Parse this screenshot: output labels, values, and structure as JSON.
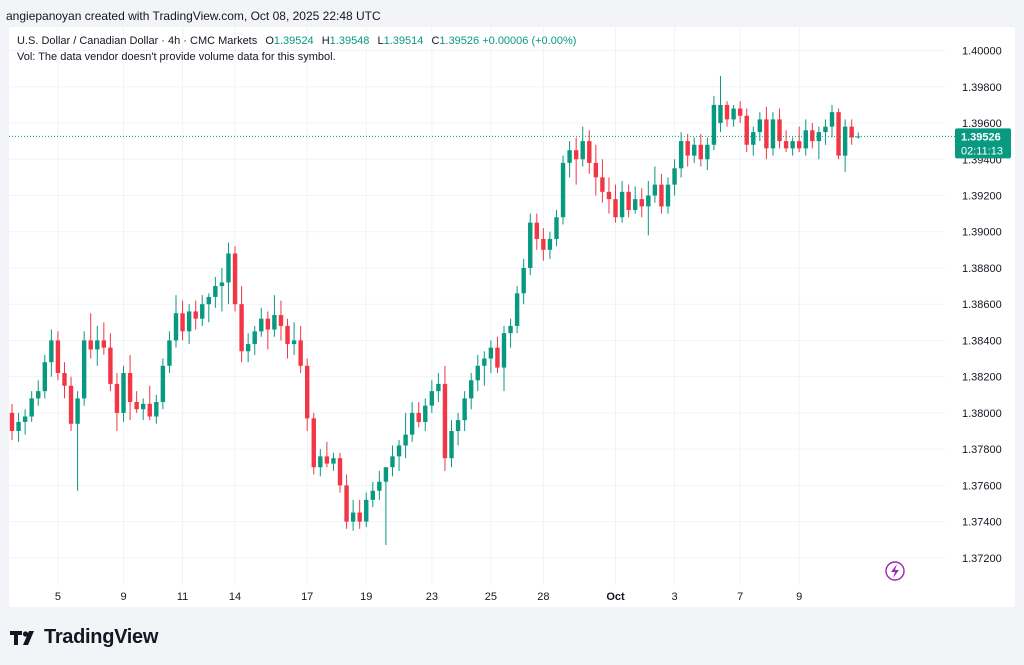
{
  "header": {
    "text": "angiepanoyan created with TradingView.com, Oct 08, 2025 22:48 UTC"
  },
  "legend": {
    "symbol": "U.S. Dollar / Canadian Dollar · 4h · CMC Markets",
    "o_label": "O",
    "o_value": "1.39524",
    "h_label": "H",
    "h_value": "1.39548",
    "l_label": "L",
    "l_value": "1.39514",
    "c_label": "C",
    "c_value": "1.39526",
    "change": "+0.00006 (+0.00%)",
    "volume_note": "Vol: The data vendor doesn't provide volume data for this symbol."
  },
  "price_label": {
    "price": "1.39526",
    "countdown": "02:11:13"
  },
  "footer": {
    "brand": "TradingView",
    "icon": "tradingview-logo-icon"
  },
  "icons": {
    "lightning": "lightning-icon"
  },
  "colors": {
    "up": "#089981",
    "down": "#f23645",
    "grid": "#f0f3fa",
    "accent": "#9c27b0"
  },
  "chart_data": {
    "type": "candlestick",
    "title": "U.S. Dollar / Canadian Dollar · 4h · CMC Markets",
    "xlabel": "",
    "ylabel": "",
    "ylim": [
      1.3705,
      1.4013
    ],
    "y_ticks": [
      "1.37200",
      "1.37400",
      "1.37600",
      "1.37800",
      "1.38000",
      "1.38200",
      "1.38400",
      "1.38600",
      "1.38800",
      "1.39000",
      "1.39200",
      "1.39400",
      "1.39600",
      "1.39800",
      "1.40000"
    ],
    "x_ticks": [
      {
        "label": "5",
        "i": 7
      },
      {
        "label": "9",
        "i": 17
      },
      {
        "label": "11",
        "i": 26
      },
      {
        "label": "14",
        "i": 34
      },
      {
        "label": "17",
        "i": 45
      },
      {
        "label": "19",
        "i": 54
      },
      {
        "label": "23",
        "i": 64
      },
      {
        "label": "25",
        "i": 73
      },
      {
        "label": "28",
        "i": 81
      },
      {
        "label": "Oct",
        "i": 92
      },
      {
        "label": "3",
        "i": 101
      },
      {
        "label": "7",
        "i": 111
      },
      {
        "label": "9",
        "i": 120
      }
    ],
    "last_price": 1.39526,
    "candles": [
      {
        "o": 1.38,
        "h": 1.3805,
        "l": 1.3785,
        "c": 1.379
      },
      {
        "o": 1.379,
        "h": 1.38,
        "l": 1.3784,
        "c": 1.3795
      },
      {
        "o": 1.3795,
        "h": 1.3802,
        "l": 1.3788,
        "c": 1.3798
      },
      {
        "o": 1.3798,
        "h": 1.3812,
        "l": 1.3795,
        "c": 1.3808
      },
      {
        "o": 1.3808,
        "h": 1.3818,
        "l": 1.3804,
        "c": 1.3812
      },
      {
        "o": 1.3812,
        "h": 1.3832,
        "l": 1.3808,
        "c": 1.3828
      },
      {
        "o": 1.3828,
        "h": 1.3846,
        "l": 1.382,
        "c": 1.384
      },
      {
        "o": 1.384,
        "h": 1.3845,
        "l": 1.3818,
        "c": 1.3822
      },
      {
        "o": 1.3822,
        "h": 1.3828,
        "l": 1.3808,
        "c": 1.3815
      },
      {
        "o": 1.3815,
        "h": 1.382,
        "l": 1.379,
        "c": 1.3794
      },
      {
        "o": 1.3794,
        "h": 1.3812,
        "l": 1.3757,
        "c": 1.3808
      },
      {
        "o": 1.3808,
        "h": 1.3845,
        "l": 1.3804,
        "c": 1.384
      },
      {
        "o": 1.384,
        "h": 1.3855,
        "l": 1.383,
        "c": 1.3835
      },
      {
        "o": 1.3835,
        "h": 1.3848,
        "l": 1.3826,
        "c": 1.384
      },
      {
        "o": 1.384,
        "h": 1.385,
        "l": 1.3832,
        "c": 1.3836
      },
      {
        "o": 1.3836,
        "h": 1.3844,
        "l": 1.3812,
        "c": 1.3816
      },
      {
        "o": 1.3816,
        "h": 1.3822,
        "l": 1.379,
        "c": 1.38
      },
      {
        "o": 1.38,
        "h": 1.3826,
        "l": 1.3795,
        "c": 1.3822
      },
      {
        "o": 1.3822,
        "h": 1.3832,
        "l": 1.3796,
        "c": 1.3806
      },
      {
        "o": 1.3806,
        "h": 1.3812,
        "l": 1.38,
        "c": 1.3802
      },
      {
        "o": 1.3802,
        "h": 1.3808,
        "l": 1.3796,
        "c": 1.3805
      },
      {
        "o": 1.3805,
        "h": 1.3815,
        "l": 1.3796,
        "c": 1.3798
      },
      {
        "o": 1.3798,
        "h": 1.381,
        "l": 1.3794,
        "c": 1.3806
      },
      {
        "o": 1.3806,
        "h": 1.383,
        "l": 1.3802,
        "c": 1.3826
      },
      {
        "o": 1.3826,
        "h": 1.3845,
        "l": 1.3822,
        "c": 1.384
      },
      {
        "o": 1.384,
        "h": 1.3865,
        "l": 1.3836,
        "c": 1.3855
      },
      {
        "o": 1.3855,
        "h": 1.3862,
        "l": 1.384,
        "c": 1.3845
      },
      {
        "o": 1.3845,
        "h": 1.386,
        "l": 1.3838,
        "c": 1.3856
      },
      {
        "o": 1.3856,
        "h": 1.3862,
        "l": 1.3846,
        "c": 1.3852
      },
      {
        "o": 1.3852,
        "h": 1.3865,
        "l": 1.3848,
        "c": 1.386
      },
      {
        "o": 1.386,
        "h": 1.3866,
        "l": 1.385,
        "c": 1.3864
      },
      {
        "o": 1.3864,
        "h": 1.3875,
        "l": 1.3858,
        "c": 1.387
      },
      {
        "o": 1.387,
        "h": 1.388,
        "l": 1.3856,
        "c": 1.3872
      },
      {
        "o": 1.3872,
        "h": 1.3894,
        "l": 1.386,
        "c": 1.3888
      },
      {
        "o": 1.3888,
        "h": 1.3892,
        "l": 1.3856,
        "c": 1.386
      },
      {
        "o": 1.386,
        "h": 1.387,
        "l": 1.3828,
        "c": 1.3834
      },
      {
        "o": 1.3834,
        "h": 1.3844,
        "l": 1.3828,
        "c": 1.3838
      },
      {
        "o": 1.3838,
        "h": 1.3848,
        "l": 1.3832,
        "c": 1.3845
      },
      {
        "o": 1.3845,
        "h": 1.3858,
        "l": 1.3842,
        "c": 1.3852
      },
      {
        "o": 1.3852,
        "h": 1.3856,
        "l": 1.3835,
        "c": 1.3846
      },
      {
        "o": 1.3846,
        "h": 1.3865,
        "l": 1.3842,
        "c": 1.3854
      },
      {
        "o": 1.3854,
        "h": 1.3862,
        "l": 1.384,
        "c": 1.3848
      },
      {
        "o": 1.3848,
        "h": 1.3852,
        "l": 1.383,
        "c": 1.3838
      },
      {
        "o": 1.3838,
        "h": 1.385,
        "l": 1.3832,
        "c": 1.384
      },
      {
        "o": 1.384,
        "h": 1.3848,
        "l": 1.3822,
        "c": 1.3826
      },
      {
        "o": 1.3826,
        "h": 1.383,
        "l": 1.379,
        "c": 1.3797
      },
      {
        "o": 1.3797,
        "h": 1.38,
        "l": 1.3766,
        "c": 1.377
      },
      {
        "o": 1.377,
        "h": 1.378,
        "l": 1.3765,
        "c": 1.3776
      },
      {
        "o": 1.3776,
        "h": 1.3784,
        "l": 1.377,
        "c": 1.3772
      },
      {
        "o": 1.3772,
        "h": 1.3778,
        "l": 1.3768,
        "c": 1.3775
      },
      {
        "o": 1.3775,
        "h": 1.3778,
        "l": 1.3756,
        "c": 1.376
      },
      {
        "o": 1.376,
        "h": 1.3766,
        "l": 1.3736,
        "c": 1.374
      },
      {
        "o": 1.374,
        "h": 1.3752,
        "l": 1.3735,
        "c": 1.3745
      },
      {
        "o": 1.3745,
        "h": 1.3752,
        "l": 1.3736,
        "c": 1.374
      },
      {
        "o": 1.374,
        "h": 1.3756,
        "l": 1.3737,
        "c": 1.3752
      },
      {
        "o": 1.3752,
        "h": 1.3762,
        "l": 1.3748,
        "c": 1.3757
      },
      {
        "o": 1.3757,
        "h": 1.3768,
        "l": 1.3752,
        "c": 1.3762
      },
      {
        "o": 1.3762,
        "h": 1.377,
        "l": 1.3727,
        "c": 1.377
      },
      {
        "o": 1.377,
        "h": 1.3782,
        "l": 1.3765,
        "c": 1.3776
      },
      {
        "o": 1.3776,
        "h": 1.3785,
        "l": 1.3768,
        "c": 1.3782
      },
      {
        "o": 1.3782,
        "h": 1.38,
        "l": 1.3775,
        "c": 1.3788
      },
      {
        "o": 1.3788,
        "h": 1.3806,
        "l": 1.3784,
        "c": 1.38
      },
      {
        "o": 1.38,
        "h": 1.3806,
        "l": 1.3792,
        "c": 1.3795
      },
      {
        "o": 1.3795,
        "h": 1.3808,
        "l": 1.379,
        "c": 1.3804
      },
      {
        "o": 1.3804,
        "h": 1.3818,
        "l": 1.38,
        "c": 1.3812
      },
      {
        "o": 1.3812,
        "h": 1.3822,
        "l": 1.3806,
        "c": 1.3816
      },
      {
        "o": 1.3816,
        "h": 1.3826,
        "l": 1.3768,
        "c": 1.3775
      },
      {
        "o": 1.3775,
        "h": 1.3796,
        "l": 1.377,
        "c": 1.379
      },
      {
        "o": 1.379,
        "h": 1.38,
        "l": 1.3782,
        "c": 1.3796
      },
      {
        "o": 1.3796,
        "h": 1.3812,
        "l": 1.379,
        "c": 1.3808
      },
      {
        "o": 1.3808,
        "h": 1.3822,
        "l": 1.3802,
        "c": 1.3818
      },
      {
        "o": 1.3818,
        "h": 1.3832,
        "l": 1.3812,
        "c": 1.3826
      },
      {
        "o": 1.3826,
        "h": 1.3834,
        "l": 1.3815,
        "c": 1.383
      },
      {
        "o": 1.383,
        "h": 1.384,
        "l": 1.3822,
        "c": 1.3836
      },
      {
        "o": 1.3836,
        "h": 1.3842,
        "l": 1.3822,
        "c": 1.3825
      },
      {
        "o": 1.3825,
        "h": 1.3848,
        "l": 1.3812,
        "c": 1.3844
      },
      {
        "o": 1.3844,
        "h": 1.3852,
        "l": 1.3836,
        "c": 1.3848
      },
      {
        "o": 1.3848,
        "h": 1.387,
        "l": 1.3844,
        "c": 1.3866
      },
      {
        "o": 1.3866,
        "h": 1.3885,
        "l": 1.386,
        "c": 1.388
      },
      {
        "o": 1.388,
        "h": 1.391,
        "l": 1.3876,
        "c": 1.3905
      },
      {
        "o": 1.3905,
        "h": 1.391,
        "l": 1.389,
        "c": 1.3896
      },
      {
        "o": 1.3896,
        "h": 1.3902,
        "l": 1.3884,
        "c": 1.389
      },
      {
        "o": 1.389,
        "h": 1.39,
        "l": 1.3885,
        "c": 1.3896
      },
      {
        "o": 1.3896,
        "h": 1.3912,
        "l": 1.3892,
        "c": 1.3908
      },
      {
        "o": 1.3908,
        "h": 1.3942,
        "l": 1.3904,
        "c": 1.3938
      },
      {
        "o": 1.3938,
        "h": 1.395,
        "l": 1.393,
        "c": 1.3945
      },
      {
        "o": 1.3945,
        "h": 1.3952,
        "l": 1.3926,
        "c": 1.394
      },
      {
        "o": 1.394,
        "h": 1.3958,
        "l": 1.3936,
        "c": 1.395
      },
      {
        "o": 1.395,
        "h": 1.3956,
        "l": 1.3932,
        "c": 1.3938
      },
      {
        "o": 1.3938,
        "h": 1.3948,
        "l": 1.392,
        "c": 1.393
      },
      {
        "o": 1.393,
        "h": 1.394,
        "l": 1.3916,
        "c": 1.3922
      },
      {
        "o": 1.3922,
        "h": 1.393,
        "l": 1.391,
        "c": 1.3918
      },
      {
        "o": 1.3918,
        "h": 1.3926,
        "l": 1.3905,
        "c": 1.3908
      },
      {
        "o": 1.3908,
        "h": 1.3928,
        "l": 1.3905,
        "c": 1.3922
      },
      {
        "o": 1.3922,
        "h": 1.3926,
        "l": 1.3908,
        "c": 1.3912
      },
      {
        "o": 1.3912,
        "h": 1.3925,
        "l": 1.391,
        "c": 1.3918
      },
      {
        "o": 1.3918,
        "h": 1.3924,
        "l": 1.3908,
        "c": 1.3914
      },
      {
        "o": 1.3914,
        "h": 1.3928,
        "l": 1.3898,
        "c": 1.392
      },
      {
        "o": 1.392,
        "h": 1.3936,
        "l": 1.3916,
        "c": 1.3926
      },
      {
        "o": 1.3926,
        "h": 1.3932,
        "l": 1.391,
        "c": 1.3914
      },
      {
        "o": 1.3914,
        "h": 1.393,
        "l": 1.391,
        "c": 1.3926
      },
      {
        "o": 1.3926,
        "h": 1.394,
        "l": 1.392,
        "c": 1.3935
      },
      {
        "o": 1.3935,
        "h": 1.3955,
        "l": 1.393,
        "c": 1.395
      },
      {
        "o": 1.395,
        "h": 1.3954,
        "l": 1.3936,
        "c": 1.3942
      },
      {
        "o": 1.3942,
        "h": 1.3952,
        "l": 1.3938,
        "c": 1.3948
      },
      {
        "o": 1.3948,
        "h": 1.3954,
        "l": 1.3936,
        "c": 1.394
      },
      {
        "o": 1.394,
        "h": 1.3952,
        "l": 1.3934,
        "c": 1.3948
      },
      {
        "o": 1.3948,
        "h": 1.3975,
        "l": 1.3945,
        "c": 1.397
      },
      {
        "o": 1.396,
        "h": 1.3986,
        "l": 1.3955,
        "c": 1.397
      },
      {
        "o": 1.397,
        "h": 1.3972,
        "l": 1.3958,
        "c": 1.3962
      },
      {
        "o": 1.3962,
        "h": 1.397,
        "l": 1.3958,
        "c": 1.3968
      },
      {
        "o": 1.3968,
        "h": 1.3972,
        "l": 1.396,
        "c": 1.3964
      },
      {
        "o": 1.3964,
        "h": 1.3968,
        "l": 1.3944,
        "c": 1.3948
      },
      {
        "o": 1.3948,
        "h": 1.3958,
        "l": 1.3942,
        "c": 1.3955
      },
      {
        "o": 1.3955,
        "h": 1.3966,
        "l": 1.395,
        "c": 1.3962
      },
      {
        "o": 1.3962,
        "h": 1.3969,
        "l": 1.394,
        "c": 1.3946
      },
      {
        "o": 1.3946,
        "h": 1.3966,
        "l": 1.3942,
        "c": 1.3962
      },
      {
        "o": 1.3962,
        "h": 1.3968,
        "l": 1.3946,
        "c": 1.395
      },
      {
        "o": 1.395,
        "h": 1.3956,
        "l": 1.3944,
        "c": 1.3946
      },
      {
        "o": 1.3946,
        "h": 1.3952,
        "l": 1.3942,
        "c": 1.395
      },
      {
        "o": 1.395,
        "h": 1.3958,
        "l": 1.3944,
        "c": 1.3946
      },
      {
        "o": 1.3946,
        "h": 1.3962,
        "l": 1.3942,
        "c": 1.3956
      },
      {
        "o": 1.3956,
        "h": 1.396,
        "l": 1.3946,
        "c": 1.395
      },
      {
        "o": 1.395,
        "h": 1.3958,
        "l": 1.394,
        "c": 1.3955
      },
      {
        "o": 1.3955,
        "h": 1.3962,
        "l": 1.3948,
        "c": 1.3958
      },
      {
        "o": 1.3958,
        "h": 1.397,
        "l": 1.3952,
        "c": 1.3966
      },
      {
        "o": 1.3966,
        "h": 1.3968,
        "l": 1.394,
        "c": 1.3942
      },
      {
        "o": 1.3942,
        "h": 1.3962,
        "l": 1.3933,
        "c": 1.3958
      },
      {
        "o": 1.3958,
        "h": 1.3962,
        "l": 1.3948,
        "c": 1.3952
      },
      {
        "o": 1.39524,
        "h": 1.39548,
        "l": 1.39514,
        "c": 1.39526
      }
    ]
  }
}
